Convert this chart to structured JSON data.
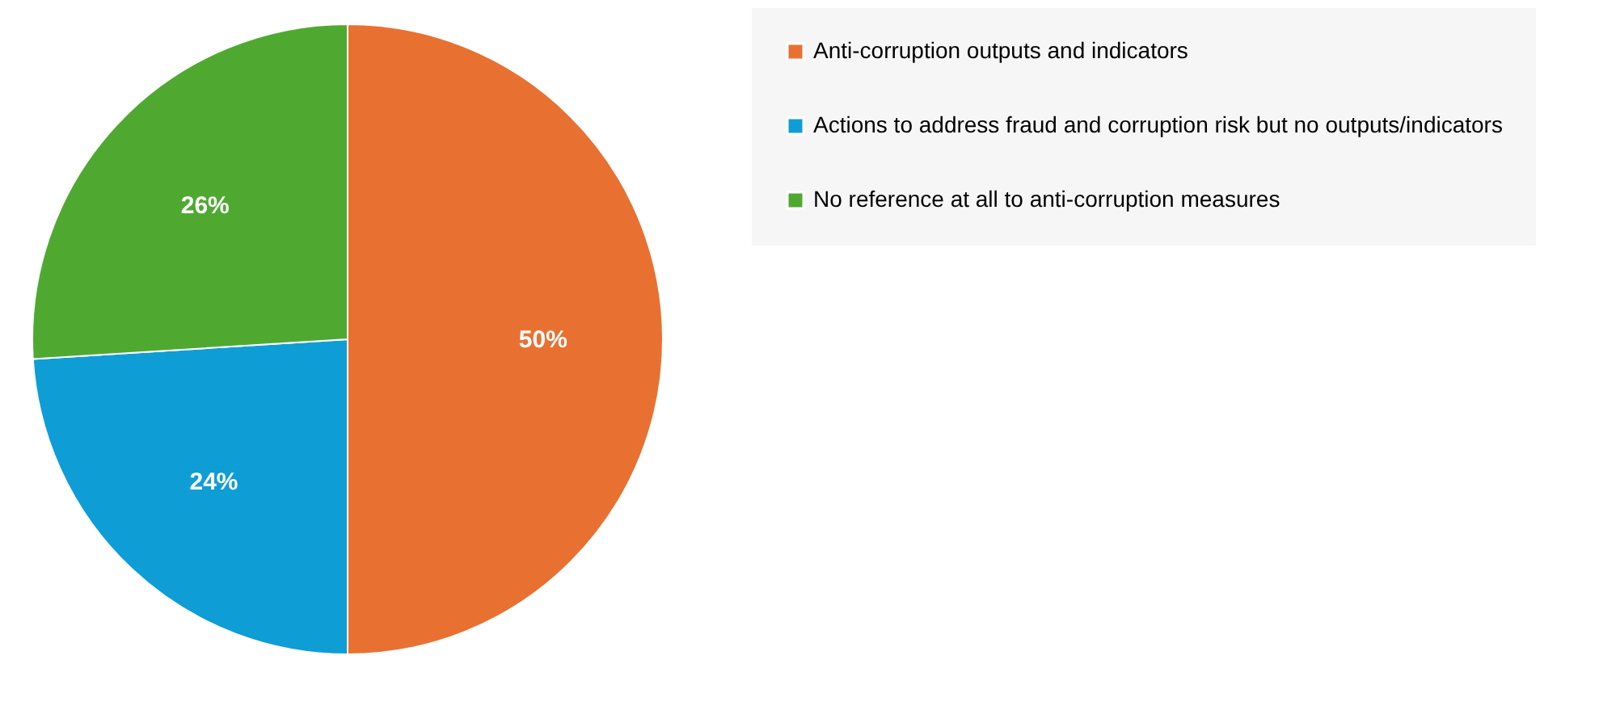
{
  "chart_data": {
    "type": "pie",
    "categories": [
      "Anti-corruption outputs and indicators",
      "Actions to address fraud and corruption risk but no outputs/indicators",
      "No reference at all to anti-corruption measures"
    ],
    "values": [
      50,
      24,
      26
    ],
    "colors": [
      "#e87132",
      "#0f9dd6",
      "#4fa931"
    ],
    "value_labels": [
      "50%",
      "24%",
      "26%"
    ],
    "legend": "right"
  }
}
